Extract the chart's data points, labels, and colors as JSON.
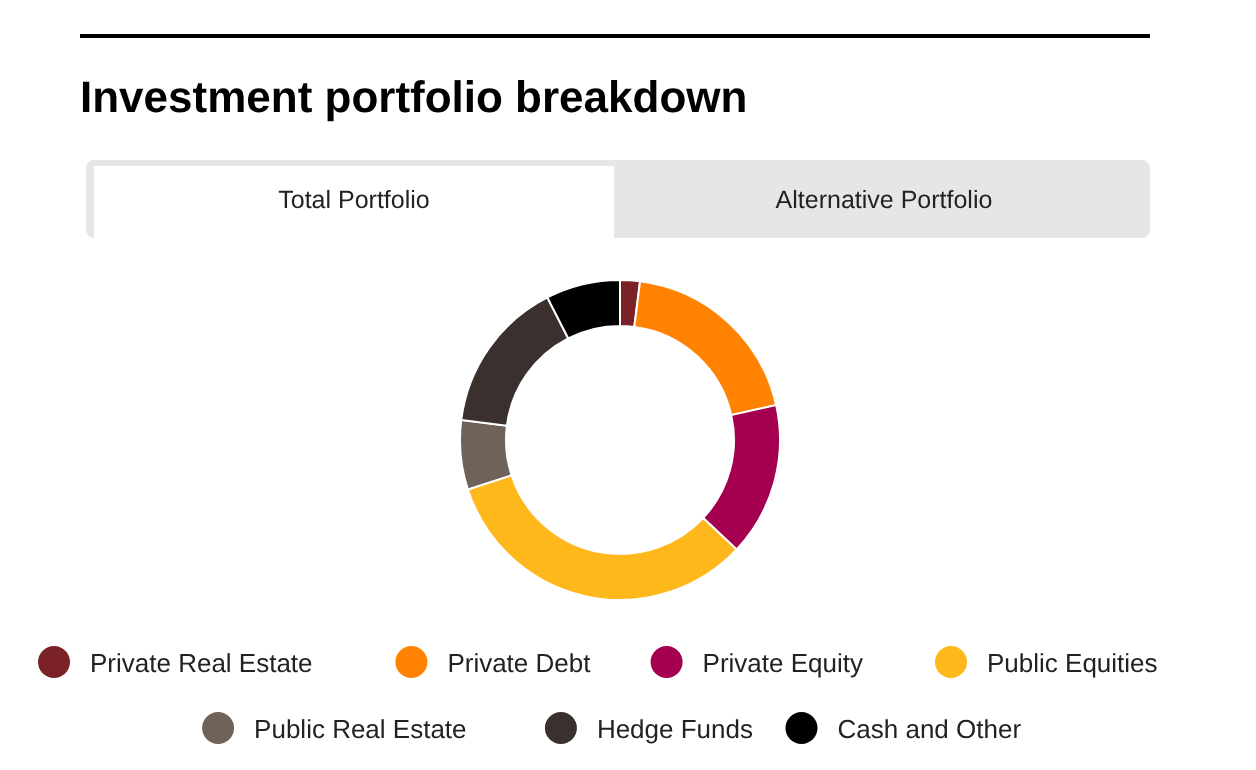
{
  "chart_data": {
    "type": "donut",
    "title": "Investment portfolio breakdown",
    "annotations": [
      "Total Portfolio",
      "Alternative Portfolio"
    ],
    "categories": [
      "Private Real Estate",
      "Private Debt",
      "Private Equity",
      "Public Equities",
      "Public Real Estate",
      "Hedge Funds",
      "Cash and Other"
    ],
    "values": [
      2,
      19.5,
      15.5,
      33,
      7,
      15.5,
      7.5
    ],
    "colors": [
      "#7a2228",
      "#ff8200",
      "#a5004f",
      "#ffb81c",
      "#6e6259",
      "#3a302e",
      "#000000"
    ],
    "legend": "bottom"
  }
}
